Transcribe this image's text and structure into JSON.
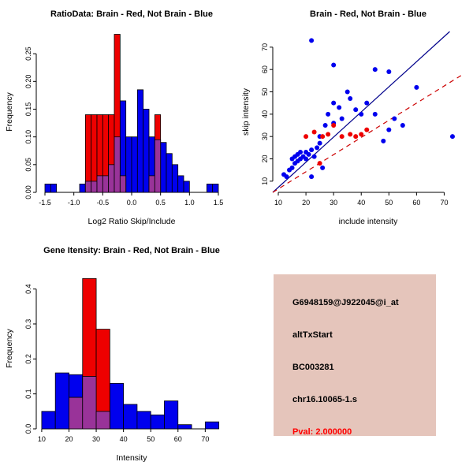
{
  "colors": {
    "background": "#ffffff",
    "brain_red": "#ee0000",
    "not_brain_blue": "#0000ee",
    "overlap_purple": "#993399",
    "fit_line_blue": "#00008b",
    "fit_line_red": "#cc0000",
    "info_panel_bg": "#e5c5bb",
    "pval_red": "#ff0000"
  },
  "chart_data": [
    {
      "id": "ratio-hist",
      "type": "histogram-overlay",
      "title": "RatioData: Brain - Red, Not Brain - Blue",
      "xlabel": "Log2 Ratio Skip/Include",
      "ylabel": "Frequency",
      "xlim": [
        -1.65,
        1.65
      ],
      "ylim": [
        0,
        0.29
      ],
      "xticks": [
        "-1.5",
        "-1.0",
        "-0.5",
        "0.0",
        "0.5",
        "1.0",
        "1.5"
      ],
      "yticks": [
        "0.00",
        "0.05",
        "0.10",
        "0.15",
        "0.20",
        "0.25"
      ],
      "overlap_color": "#993399",
      "series": [
        {
          "name": "Not Brain",
          "color": "#0000ee",
          "start": -1.5,
          "width": 0.1,
          "values": [
            0.015,
            0.015,
            0,
            0,
            0,
            0,
            0.015,
            0.02,
            0.02,
            0.03,
            0.03,
            0.05,
            0.1,
            0.165,
            0.1,
            0.1,
            0.185,
            0.15,
            0.1,
            0.095,
            0.09,
            0.07,
            0.05,
            0.03,
            0.02,
            0,
            0,
            0,
            0.015,
            0.015
          ]
        },
        {
          "name": "Brain",
          "color": "#ee0000",
          "start": -0.8,
          "width": 0.1,
          "values": [
            0.14,
            0.14,
            0.14,
            0.14,
            0.14,
            0.285,
            0.03,
            0,
            0,
            0,
            0,
            0.03,
            0.14
          ]
        }
      ]
    },
    {
      "id": "intensity-scatter",
      "type": "scatter",
      "title": "Brain - Red, Not Brain - Blue",
      "xlabel": "include intensity",
      "ylabel": "skip intensity",
      "xlim": [
        8,
        77
      ],
      "ylim": [
        5,
        77
      ],
      "xticks": [
        "10",
        "20",
        "30",
        "40",
        "50",
        "60",
        "70"
      ],
      "yticks": [
        "10",
        "20",
        "30",
        "40",
        "50",
        "60",
        "70"
      ],
      "series": [
        {
          "name": "Not Brain",
          "color": "#0000ee",
          "points": [
            [
              12,
              13
            ],
            [
              13,
              12
            ],
            [
              14,
              15
            ],
            [
              15,
              16
            ],
            [
              15,
              20
            ],
            [
              16,
              18
            ],
            [
              16,
              21
            ],
            [
              17,
              19
            ],
            [
              17,
              22
            ],
            [
              18,
              20
            ],
            [
              18,
              23
            ],
            [
              19,
              21
            ],
            [
              20,
              20
            ],
            [
              20,
              23
            ],
            [
              21,
              22
            ],
            [
              22,
              24
            ],
            [
              23,
              21
            ],
            [
              24,
              25
            ],
            [
              25,
              27
            ],
            [
              22,
              12
            ],
            [
              26,
              16
            ],
            [
              25,
              30
            ],
            [
              27,
              35
            ],
            [
              28,
              40
            ],
            [
              30,
              36
            ],
            [
              30,
              45
            ],
            [
              32,
              43
            ],
            [
              33,
              38
            ],
            [
              35,
              50
            ],
            [
              36,
              47
            ],
            [
              38,
              42
            ],
            [
              40,
              40
            ],
            [
              42,
              45
            ],
            [
              45,
              40
            ],
            [
              45,
              60
            ],
            [
              48,
              28
            ],
            [
              50,
              59
            ],
            [
              50,
              33
            ],
            [
              52,
              38
            ],
            [
              55,
              35
            ],
            [
              60,
              52
            ],
            [
              30,
              62
            ],
            [
              22,
              73
            ],
            [
              73,
              30
            ]
          ]
        },
        {
          "name": "Brain",
          "color": "#ee0000",
          "points": [
            [
              20,
              30
            ],
            [
              23,
              32
            ],
            [
              25,
              18
            ],
            [
              26,
              30
            ],
            [
              28,
              31
            ],
            [
              30,
              35
            ],
            [
              33,
              30
            ],
            [
              36,
              31
            ],
            [
              38,
              30
            ],
            [
              40,
              31
            ],
            [
              42,
              33
            ]
          ]
        }
      ],
      "lines": [
        {
          "name": "not-brain-fit",
          "color": "#00008b",
          "style": "solid",
          "x1": 8,
          "y1": 5,
          "x2": 72,
          "y2": 77
        },
        {
          "name": "brain-fit",
          "color": "#cc0000",
          "style": "dashed",
          "x1": 8,
          "y1": 5,
          "x2": 77,
          "y2": 58
        }
      ]
    },
    {
      "id": "gene-hist",
      "type": "histogram-overlay",
      "title": "Gene Itensity: Brain - Red, Not Brain - Blue",
      "xlabel": "Intensity",
      "ylabel": "Frequency",
      "xlim": [
        8,
        78
      ],
      "ylim": [
        0,
        0.46
      ],
      "xticks": [
        "10",
        "20",
        "30",
        "40",
        "50",
        "60",
        "70"
      ],
      "yticks": [
        "0.0",
        "0.1",
        "0.2",
        "0.3",
        "0.4"
      ],
      "overlap_color": "#993399",
      "series": [
        {
          "name": "Not Brain",
          "color": "#0000ee",
          "start": 10,
          "width": 5,
          "values": [
            0.05,
            0.16,
            0.155,
            0.15,
            0.05,
            0.13,
            0.07,
            0.05,
            0.04,
            0.08,
            0.012,
            0,
            0.02
          ]
        },
        {
          "name": "Brain",
          "color": "#ee0000",
          "start": 20,
          "width": 5,
          "values": [
            0.09,
            0.43,
            0.285
          ]
        }
      ]
    }
  ],
  "info_panel": {
    "background": "#e5c5bb",
    "lines": [
      {
        "text": "G6948159@J922045@i_at",
        "color": "#000000"
      },
      {
        "text": "altTxStart",
        "color": "#000000"
      },
      {
        "text": "BC003281",
        "color": "#000000"
      },
      {
        "text": "chr16.10065-1.s",
        "color": "#000000"
      },
      {
        "text": "Pval: 2.000000",
        "color": "#ff0000"
      }
    ]
  }
}
